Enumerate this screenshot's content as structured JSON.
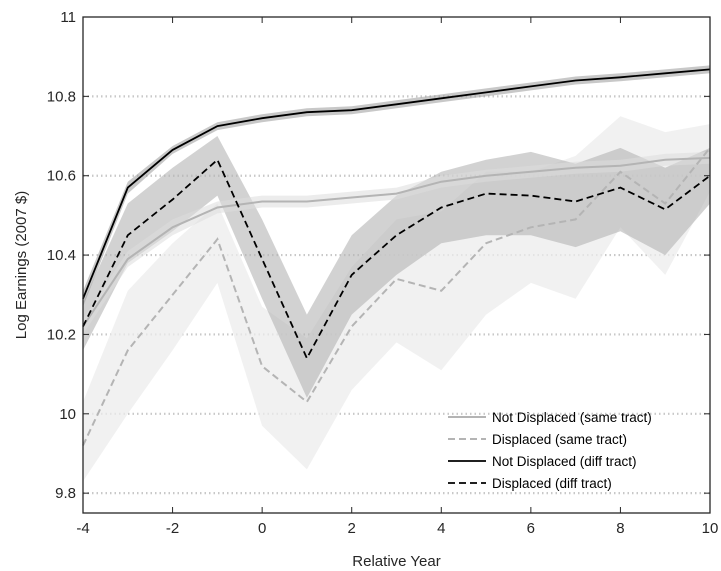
{
  "chart_data": {
    "type": "line",
    "title": "",
    "xlabel": "Relative Year",
    "ylabel": "Log Earnings (2007 $)",
    "xlim": [
      -4,
      10
    ],
    "ylim": [
      9.75,
      11
    ],
    "xticks": [
      -4,
      -2,
      0,
      2,
      4,
      6,
      8,
      10
    ],
    "yticks": [
      9.8,
      10,
      10.2,
      10.4,
      10.6,
      10.8,
      11
    ],
    "xtick_labels": [
      "-4",
      "-2",
      "0",
      "2",
      "4",
      "6",
      "8",
      "10"
    ],
    "ytick_labels": [
      "9.8",
      "10",
      "10.2",
      "10.4",
      "10.6",
      "10.8",
      "11"
    ],
    "grid": "horizontal dotted",
    "legend_position": "bottom-right",
    "x": [
      -4,
      -3,
      -2,
      -1,
      0,
      1,
      2,
      3,
      4,
      5,
      6,
      7,
      8,
      9,
      10
    ],
    "series": [
      {
        "name": "Not Displaced (same tract)",
        "style": "solid",
        "color": "#b4b4b4",
        "values": [
          10.22,
          10.39,
          10.47,
          10.52,
          10.535,
          10.535,
          10.545,
          10.555,
          10.585,
          10.6,
          10.61,
          10.62,
          10.625,
          10.64,
          10.645
        ],
        "lower": [
          10.2,
          10.37,
          10.45,
          10.505,
          10.52,
          10.52,
          10.53,
          10.54,
          10.57,
          10.585,
          10.595,
          10.605,
          10.61,
          10.625,
          10.63
        ],
        "upper": [
          10.24,
          10.41,
          10.49,
          10.535,
          10.55,
          10.55,
          10.56,
          10.57,
          10.6,
          10.615,
          10.625,
          10.635,
          10.64,
          10.655,
          10.66
        ]
      },
      {
        "name": "Displaced (same tract)",
        "style": "dashed",
        "color": "#b4b4b4",
        "values": [
          9.92,
          10.16,
          10.3,
          10.44,
          10.12,
          10.03,
          10.22,
          10.34,
          10.31,
          10.43,
          10.47,
          10.49,
          10.61,
          10.53,
          10.67
        ],
        "lower": [
          9.83,
          10.0,
          10.16,
          10.33,
          9.97,
          9.86,
          10.06,
          10.18,
          10.11,
          10.25,
          10.33,
          10.29,
          10.47,
          10.35,
          10.56
        ],
        "upper": [
          10.03,
          10.31,
          10.43,
          10.53,
          10.27,
          10.19,
          10.37,
          10.49,
          10.51,
          10.61,
          10.61,
          10.65,
          10.75,
          10.71,
          10.73
        ]
      },
      {
        "name": "Not Displaced (diff tract)",
        "style": "solid",
        "color": "#000000",
        "values": [
          10.29,
          10.57,
          10.665,
          10.725,
          10.745,
          10.76,
          10.765,
          10.78,
          10.795,
          10.81,
          10.825,
          10.84,
          10.848,
          10.858,
          10.868
        ],
        "lower": [
          10.27,
          10.555,
          10.655,
          10.715,
          10.735,
          10.75,
          10.755,
          10.77,
          10.785,
          10.8,
          10.815,
          10.83,
          10.838,
          10.848,
          10.858
        ],
        "upper": [
          10.31,
          10.585,
          10.675,
          10.735,
          10.755,
          10.77,
          10.775,
          10.79,
          10.805,
          10.82,
          10.835,
          10.85,
          10.858,
          10.868,
          10.878
        ]
      },
      {
        "name": "Displaced (diff tract)",
        "style": "dashed",
        "color": "#000000",
        "values": [
          10.22,
          10.45,
          10.54,
          10.64,
          10.39,
          10.14,
          10.35,
          10.45,
          10.52,
          10.555,
          10.55,
          10.535,
          10.57,
          10.515,
          10.6
        ],
        "lower": [
          10.16,
          10.38,
          10.46,
          10.55,
          10.29,
          10.04,
          10.25,
          10.35,
          10.43,
          10.45,
          10.45,
          10.42,
          10.46,
          10.4,
          10.53
        ],
        "upper": [
          10.28,
          10.53,
          10.62,
          10.7,
          10.49,
          10.25,
          10.45,
          10.55,
          10.61,
          10.64,
          10.66,
          10.63,
          10.67,
          10.62,
          10.67
        ]
      }
    ]
  }
}
